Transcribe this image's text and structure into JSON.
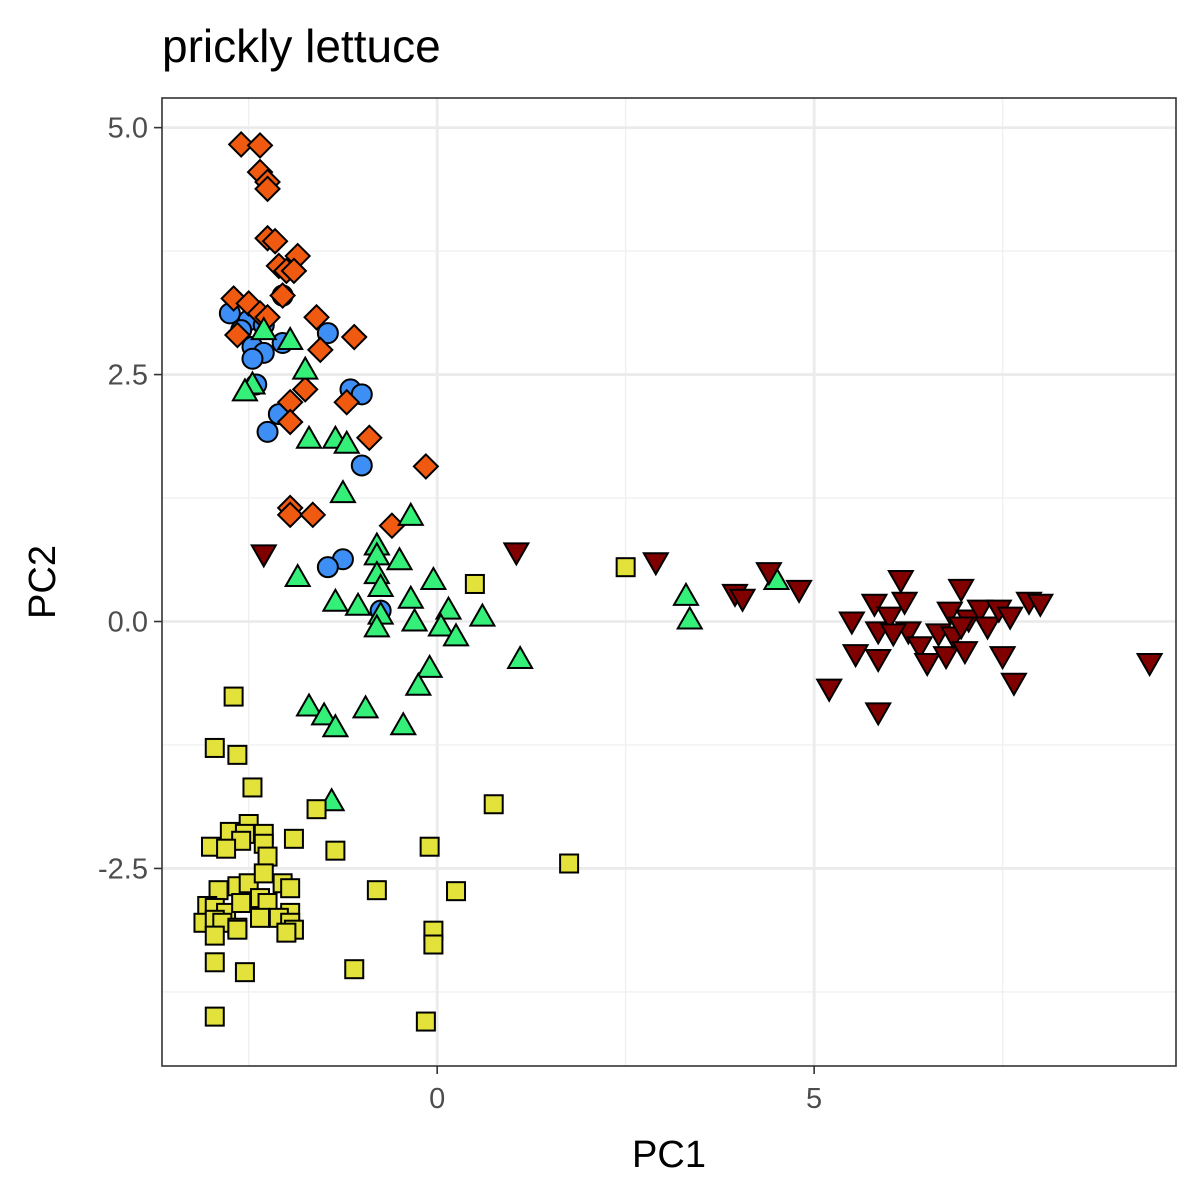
{
  "chart_data": {
    "type": "scatter",
    "title": "prickly lettuce",
    "xlabel": "PC1",
    "ylabel": "PC2",
    "xlim": [
      -3.65,
      9.8
    ],
    "ylim": [
      -4.5,
      5.3
    ],
    "x_ticks": [
      0,
      5
    ],
    "x_tick_labels": [
      "0",
      "5"
    ],
    "x_minor_ticks": [
      -2.5,
      2.5,
      7.5
    ],
    "y_ticks": [
      -2.5,
      0,
      2.5,
      5
    ],
    "y_tick_labels": [
      "-2.5",
      "0.0",
      "2.5",
      "5.0"
    ],
    "y_minor_ticks": [
      -3.75,
      -1.25,
      1.25,
      3.75
    ],
    "grid": true,
    "legend": "none",
    "series": [
      {
        "marker": "circle",
        "color": "#3d8ef5",
        "points": [
          [
            -2.75,
            3.12
          ],
          [
            -2.5,
            3.05
          ],
          [
            -2.3,
            3.0
          ],
          [
            -2.6,
            2.95
          ],
          [
            -2.45,
            2.78
          ],
          [
            -2.3,
            2.72
          ],
          [
            -2.45,
            2.66
          ],
          [
            -2.05,
            2.82
          ],
          [
            -1.45,
            2.92
          ],
          [
            -2.4,
            2.4
          ],
          [
            -1.15,
            2.35
          ],
          [
            -1.0,
            2.3
          ],
          [
            -2.1,
            2.1
          ],
          [
            -2.25,
            1.92
          ],
          [
            -1.0,
            1.58
          ],
          [
            -1.25,
            0.63
          ],
          [
            -1.45,
            0.55
          ],
          [
            -0.75,
            0.11
          ],
          [
            -2.05,
            3.3
          ]
        ]
      },
      {
        "marker": "diamond",
        "color": "#f05a10",
        "points": [
          [
            -2.6,
            4.83
          ],
          [
            -2.35,
            4.82
          ],
          [
            -2.35,
            4.55
          ],
          [
            -2.25,
            4.45
          ],
          [
            -2.25,
            4.38
          ],
          [
            -2.25,
            3.88
          ],
          [
            -2.15,
            3.85
          ],
          [
            -1.85,
            3.7
          ],
          [
            -2.1,
            3.6
          ],
          [
            -2.0,
            3.55
          ],
          [
            -1.9,
            3.55
          ],
          [
            -2.05,
            3.3
          ],
          [
            -2.7,
            3.27
          ],
          [
            -2.5,
            3.22
          ],
          [
            -2.35,
            3.12
          ],
          [
            -2.25,
            3.08
          ],
          [
            -1.6,
            3.08
          ],
          [
            -2.65,
            2.9
          ],
          [
            -1.55,
            2.75
          ],
          [
            -1.1,
            2.88
          ],
          [
            -1.75,
            2.35
          ],
          [
            -1.95,
            2.22
          ],
          [
            -1.2,
            2.22
          ],
          [
            -1.95,
            2.02
          ],
          [
            -0.9,
            1.86
          ],
          [
            -0.15,
            1.57
          ],
          [
            -0.6,
            0.97
          ],
          [
            -1.95,
            1.15
          ],
          [
            -1.95,
            1.08
          ],
          [
            -1.65,
            1.08
          ]
        ]
      },
      {
        "marker": "triangle-up",
        "color": "#35f078",
        "points": [
          [
            -2.3,
            2.95
          ],
          [
            -1.95,
            2.85
          ],
          [
            -1.75,
            2.55
          ],
          [
            -2.45,
            2.4
          ],
          [
            -2.55,
            2.33
          ],
          [
            -1.7,
            1.85
          ],
          [
            -1.35,
            1.85
          ],
          [
            -1.2,
            1.8
          ],
          [
            -1.25,
            1.3
          ],
          [
            -0.35,
            1.07
          ],
          [
            -0.8,
            0.77
          ],
          [
            -0.8,
            0.67
          ],
          [
            -0.5,
            0.62
          ],
          [
            -0.8,
            0.48
          ],
          [
            -1.85,
            0.45
          ],
          [
            -0.75,
            0.35
          ],
          [
            -0.05,
            0.42
          ],
          [
            -0.35,
            0.23
          ],
          [
            -1.35,
            0.2
          ],
          [
            -1.05,
            0.16
          ],
          [
            -0.75,
            0.07
          ],
          [
            0.15,
            0.12
          ],
          [
            0.6,
            0.05
          ],
          [
            -0.3,
            0.0
          ],
          [
            -0.8,
            -0.06
          ],
          [
            0.05,
            -0.05
          ],
          [
            0.25,
            -0.15
          ],
          [
            -0.1,
            -0.47
          ],
          [
            -0.25,
            -0.65
          ],
          [
            -1.7,
            -0.86
          ],
          [
            -0.95,
            -0.88
          ],
          [
            -1.5,
            -0.95
          ],
          [
            -1.35,
            -1.07
          ],
          [
            -0.45,
            -1.05
          ],
          [
            1.1,
            -0.38
          ],
          [
            3.3,
            0.26
          ],
          [
            3.35,
            0.02
          ],
          [
            4.5,
            0.42
          ],
          [
            -1.4,
            -1.82
          ]
        ]
      },
      {
        "marker": "square",
        "color": "#e2e23a",
        "points": [
          [
            -2.7,
            -0.76
          ],
          [
            -2.95,
            -1.28
          ],
          [
            -2.65,
            -1.35
          ],
          [
            -2.45,
            -1.68
          ],
          [
            -2.5,
            -2.05
          ],
          [
            -2.75,
            -2.13
          ],
          [
            -2.55,
            -2.15
          ],
          [
            -2.3,
            -2.15
          ],
          [
            -2.6,
            -2.22
          ],
          [
            -2.3,
            -2.25
          ],
          [
            -3.0,
            -2.28
          ],
          [
            -2.8,
            -2.3
          ],
          [
            -2.25,
            -2.38
          ],
          [
            -1.9,
            -2.2
          ],
          [
            -1.6,
            -1.9
          ],
          [
            -1.35,
            -2.32
          ],
          [
            -0.1,
            -2.28
          ],
          [
            0.75,
            -1.85
          ],
          [
            1.75,
            -2.45
          ],
          [
            -0.8,
            -2.72
          ],
          [
            0.25,
            -2.73
          ],
          [
            -2.9,
            -2.72
          ],
          [
            -2.65,
            -2.68
          ],
          [
            -2.5,
            -2.65
          ],
          [
            -2.3,
            -2.55
          ],
          [
            -2.05,
            -2.65
          ],
          [
            -1.95,
            -2.7
          ],
          [
            -3.05,
            -2.88
          ],
          [
            -2.95,
            -2.9
          ],
          [
            -2.8,
            -2.95
          ],
          [
            -2.6,
            -2.85
          ],
          [
            -2.35,
            -2.8
          ],
          [
            -2.25,
            -2.85
          ],
          [
            -1.95,
            -2.95
          ],
          [
            -3.1,
            -3.05
          ],
          [
            -2.95,
            -3.02
          ],
          [
            -2.85,
            -3.05
          ],
          [
            -2.65,
            -3.1
          ],
          [
            -2.35,
            -3.0
          ],
          [
            -2.1,
            -3.0
          ],
          [
            -1.95,
            -3.05
          ],
          [
            -1.9,
            -3.12
          ],
          [
            -2.95,
            -3.18
          ],
          [
            -2.65,
            -3.12
          ],
          [
            -2.0,
            -3.15
          ],
          [
            -2.95,
            -3.45
          ],
          [
            -2.55,
            -3.55
          ],
          [
            -1.1,
            -3.52
          ],
          [
            -0.05,
            -3.13
          ],
          [
            -0.05,
            -3.27
          ],
          [
            -2.95,
            -4.0
          ],
          [
            -0.15,
            -4.05
          ],
          [
            0.5,
            0.38
          ],
          [
            2.5,
            0.55
          ]
        ]
      },
      {
        "marker": "triangle-down",
        "color": "#800000",
        "points": [
          [
            -2.3,
            0.68
          ],
          [
            1.05,
            0.7
          ],
          [
            2.9,
            0.6
          ],
          [
            3.95,
            0.28
          ],
          [
            4.05,
            0.23
          ],
          [
            4.4,
            0.5
          ],
          [
            4.8,
            0.32
          ],
          [
            5.2,
            -0.68
          ],
          [
            5.5,
            0.0
          ],
          [
            5.55,
            -0.33
          ],
          [
            5.8,
            0.18
          ],
          [
            5.85,
            -0.1
          ],
          [
            5.85,
            -0.38
          ],
          [
            5.85,
            -0.92
          ],
          [
            6.0,
            0.05
          ],
          [
            6.15,
            0.42
          ],
          [
            6.2,
            0.2
          ],
          [
            6.25,
            -0.1
          ],
          [
            6.4,
            -0.25
          ],
          [
            6.5,
            -0.42
          ],
          [
            6.65,
            -0.12
          ],
          [
            6.75,
            -0.35
          ],
          [
            6.8,
            0.1
          ],
          [
            6.85,
            -0.15
          ],
          [
            6.95,
            0.33
          ],
          [
            7.0,
            -0.3
          ],
          [
            7.05,
            0.02
          ],
          [
            7.2,
            0.12
          ],
          [
            7.3,
            -0.05
          ],
          [
            7.45,
            0.12
          ],
          [
            7.5,
            -0.35
          ],
          [
            7.6,
            0.05
          ],
          [
            7.65,
            -0.62
          ],
          [
            7.85,
            0.2
          ],
          [
            8.0,
            0.18
          ],
          [
            6.05,
            -0.12
          ],
          [
            6.95,
            -0.05
          ],
          [
            9.45,
            -0.42
          ]
        ]
      }
    ]
  }
}
